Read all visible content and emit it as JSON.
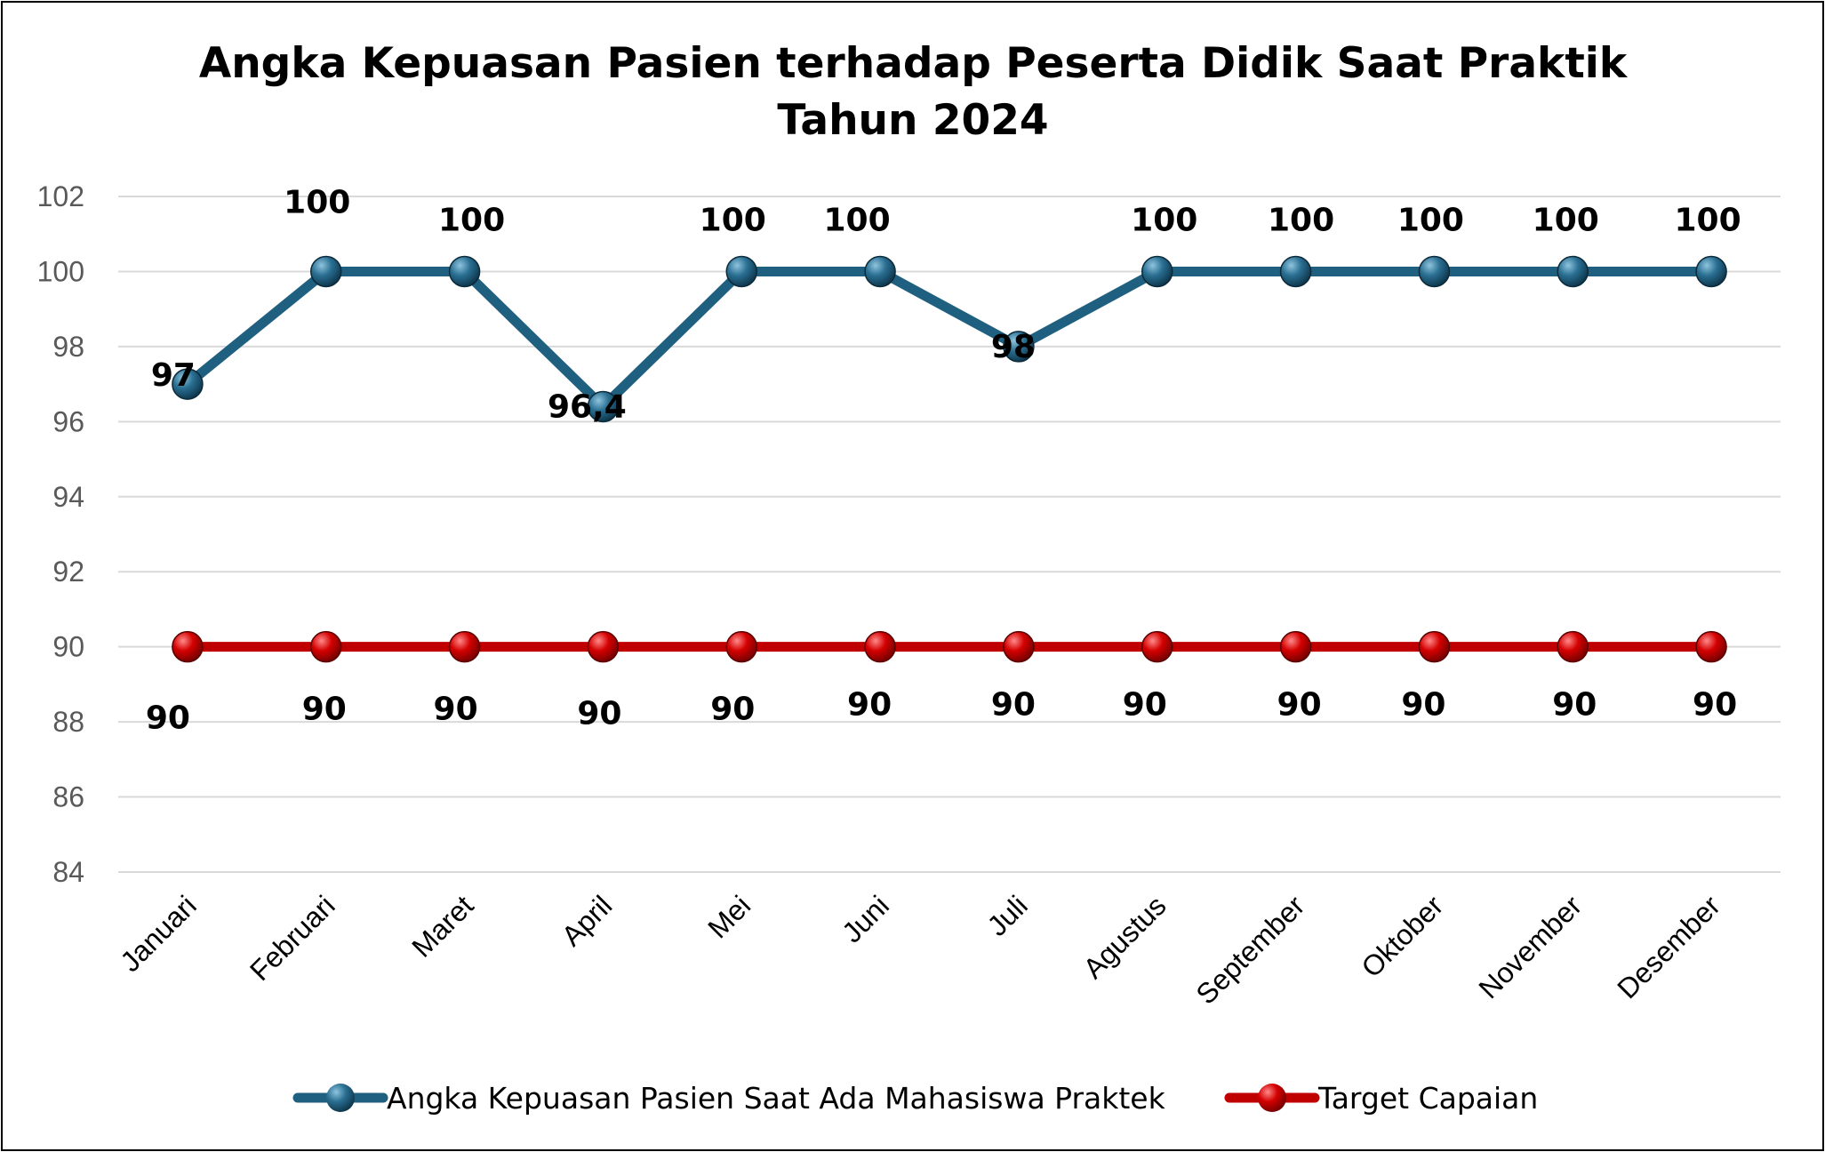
{
  "chart_data": {
    "type": "line",
    "title": "Angka Kepuasan Pasien terhadap Peserta Didik Saat Praktik",
    "subtitle": "Tahun 2024",
    "categories": [
      "Januari",
      "Februari",
      "Maret",
      "April",
      "Mei",
      "Juni",
      "Juli",
      "Agustus",
      "September",
      "Oktober",
      "November",
      "Desember"
    ],
    "series": [
      {
        "name": "Angka Kepuasan Pasien Saat Ada Mahasiswa Praktek",
        "color": "#1f5f7f",
        "values": [
          97,
          100,
          100,
          96.4,
          100,
          100,
          98,
          100,
          100,
          100,
          100,
          100
        ],
        "labels": [
          "97",
          "100",
          "100",
          "96,4",
          "100",
          "100",
          "98",
          "100",
          "100",
          "100",
          "100",
          "100"
        ]
      },
      {
        "name": "Target Capaian",
        "color": "#c00000",
        "values": [
          90,
          90,
          90,
          90,
          90,
          90,
          90,
          90,
          90,
          90,
          90,
          90
        ],
        "labels": [
          "90",
          "90",
          "90",
          "90",
          "90",
          "90",
          "90",
          "90",
          "90",
          "90",
          "90",
          "90"
        ]
      }
    ],
    "ylim": [
      84,
      102
    ],
    "yticks": [
      "84",
      "86",
      "88",
      "90",
      "92",
      "94",
      "96",
      "98",
      "100",
      "102"
    ],
    "grid": true,
    "legend": "bottom"
  }
}
